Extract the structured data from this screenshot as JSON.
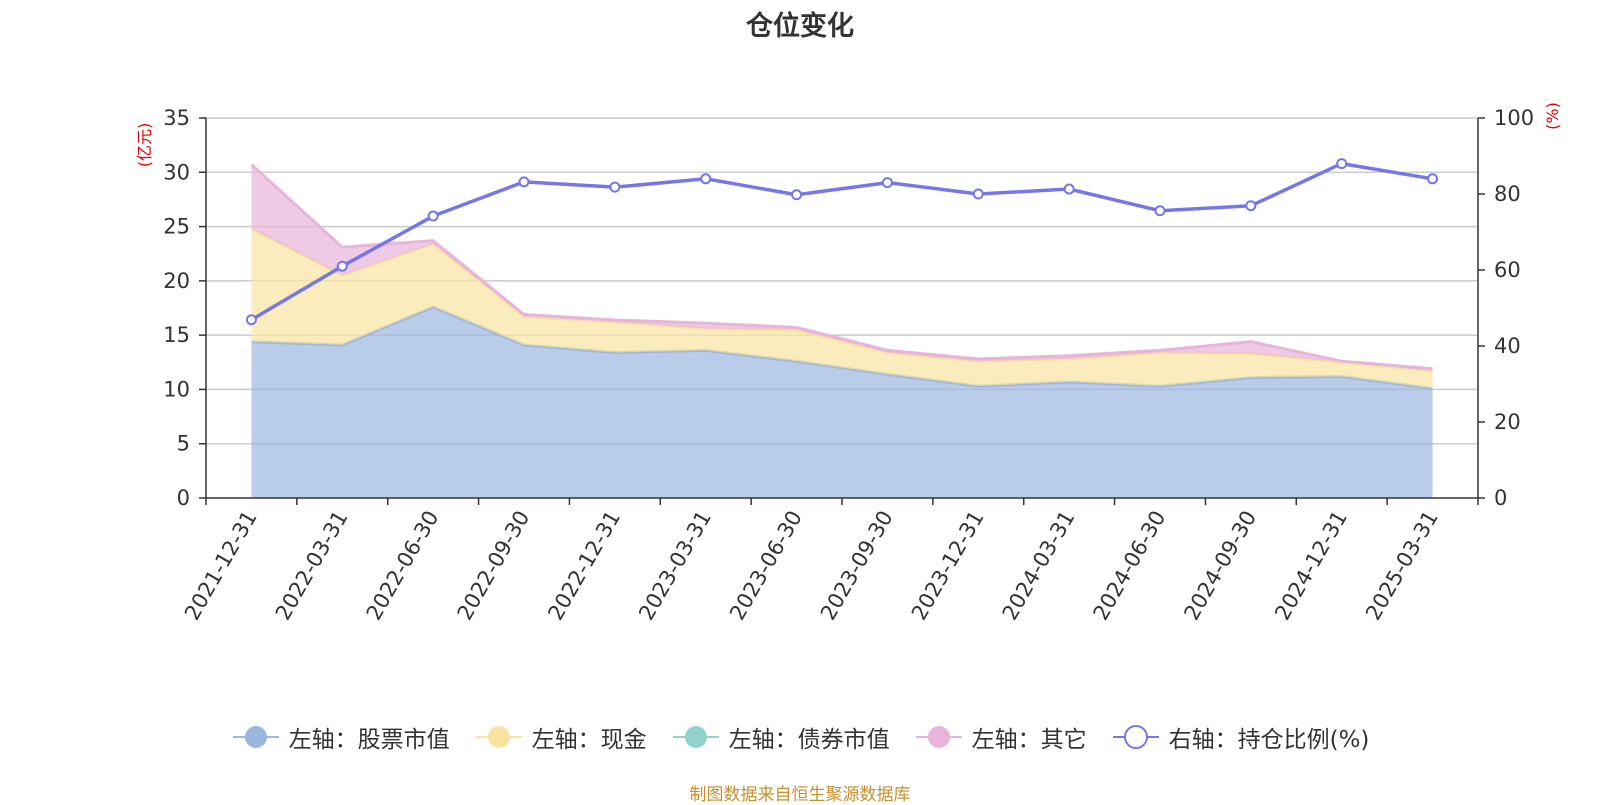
{
  "chart_data": {
    "type": "area",
    "title": "仓位变化",
    "x": [
      "2021-12-31",
      "2022-03-31",
      "2022-06-30",
      "2022-09-30",
      "2022-12-31",
      "2023-03-31",
      "2023-06-30",
      "2023-09-30",
      "2023-12-31",
      "2024-03-31",
      "2024-06-30",
      "2024-09-30",
      "2024-12-31",
      "2025-03-31"
    ],
    "left_axis": {
      "unit": "(亿元)",
      "ylim": [
        0,
        35
      ],
      "ticks": [
        0,
        5,
        10,
        15,
        20,
        25,
        30,
        35
      ]
    },
    "right_axis": {
      "unit": "(%)",
      "ylim": [
        0,
        100
      ],
      "ticks": [
        0,
        20,
        40,
        60,
        80,
        100
      ]
    },
    "grid": true,
    "legend_position": "bottom",
    "series": [
      {
        "name": "左轴：股票市值",
        "axis": "left",
        "kind": "stacked-area",
        "color": "#9bb7e0",
        "values": [
          14.4,
          14.1,
          17.6,
          14.1,
          13.4,
          13.6,
          12.6,
          11.4,
          10.3,
          10.7,
          10.3,
          11.1,
          11.2,
          10.1
        ]
      },
      {
        "name": "左轴：现金",
        "axis": "left",
        "kind": "stacked-area",
        "color": "#f8e4a0",
        "values": [
          10.4,
          6.4,
          5.8,
          2.6,
          2.8,
          2.0,
          2.9,
          2.0,
          2.3,
          2.1,
          3.1,
          2.2,
          1.3,
          1.6
        ]
      },
      {
        "name": "左轴：债券市值",
        "axis": "left",
        "kind": "stacked-area",
        "color": "#8fd3cc",
        "values": [
          0,
          0,
          0,
          0,
          0,
          0,
          0,
          0,
          0,
          0,
          0,
          0,
          0,
          0
        ]
      },
      {
        "name": "左轴：其它",
        "axis": "left",
        "kind": "stacked-area",
        "color": "#e8b4da",
        "values": [
          5.9,
          2.6,
          0.3,
          0.2,
          0.2,
          0.5,
          0.2,
          0.2,
          0.2,
          0.3,
          0.2,
          1.1,
          0.1,
          0.2
        ]
      },
      {
        "name": "右轴：持仓比例(%)",
        "axis": "right",
        "kind": "line",
        "color": "#7577e8",
        "values": [
          46.9,
          61.0,
          74.2,
          83.2,
          81.8,
          84.0,
          79.8,
          83.0,
          80.0,
          81.3,
          75.6,
          76.9,
          88.0,
          84.0
        ]
      }
    ]
  },
  "footer": {
    "source_note": "制图数据来自恒生聚源数据库"
  }
}
